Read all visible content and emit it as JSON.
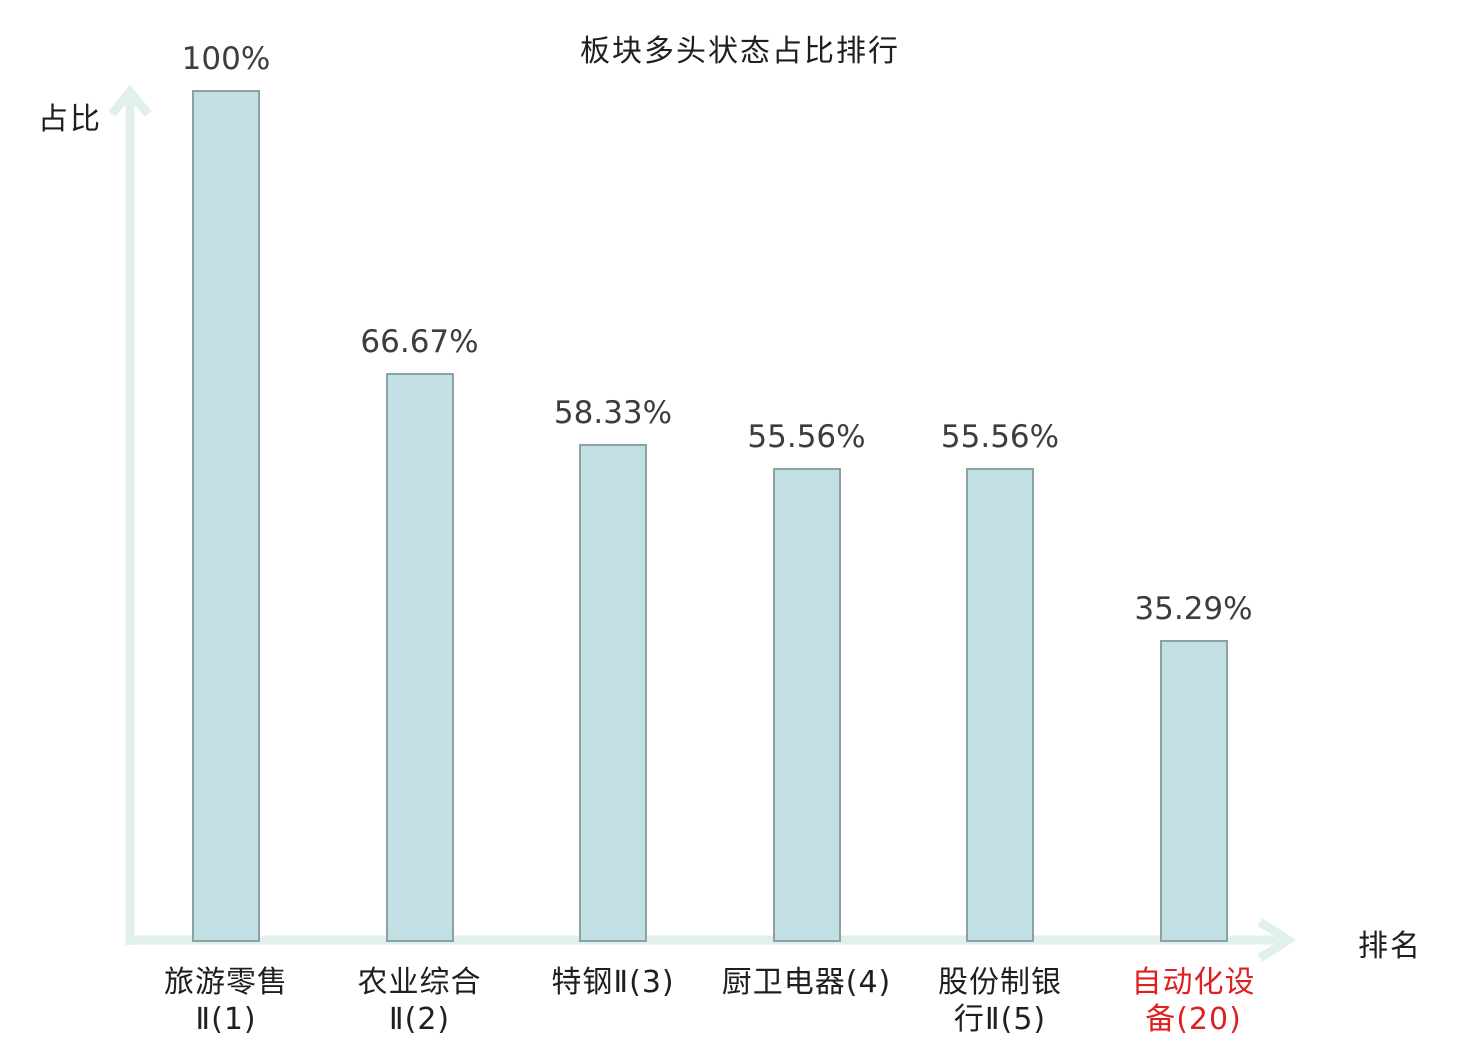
{
  "chart": {
    "title": "板块多头状态占比排行",
    "y_axis_label": "占比",
    "x_axis_label": "排名"
  },
  "chart_data": {
    "type": "bar",
    "title": "板块多头状态占比排行",
    "xlabel": "排名",
    "ylabel": "占比",
    "ylim": [
      0,
      100
    ],
    "grid": false,
    "legend": null,
    "categories": [
      "旅游零售Ⅱ(1)",
      "农业综合Ⅱ(2)",
      "特钢Ⅱ(3)",
      "厨卫电器(4)",
      "股份制银行Ⅱ(5)",
      "自动化设备(20)"
    ],
    "category_lines": [
      [
        "旅游零售",
        "Ⅱ(1)"
      ],
      [
        "农业综合",
        "Ⅱ(2)"
      ],
      [
        "特钢Ⅱ(3)"
      ],
      [
        "厨卫电器(4)"
      ],
      [
        "股份制银",
        "行Ⅱ(5)"
      ],
      [
        "自动化设",
        "备(20)"
      ]
    ],
    "values": [
      100,
      66.67,
      58.33,
      55.56,
      55.56,
      35.29
    ],
    "value_labels": [
      "100%",
      "66.67%",
      "58.33%",
      "55.56%",
      "55.56%",
      "35.29%"
    ],
    "highlight_index": 5,
    "highlight_color": "#e02020",
    "label_color": "#1f1f1f",
    "value_color": "#3d3d3d",
    "bar_fill": "#c2e0e3",
    "bar_border": "#8ba1a6",
    "axis_color": "#e2f0eb"
  }
}
